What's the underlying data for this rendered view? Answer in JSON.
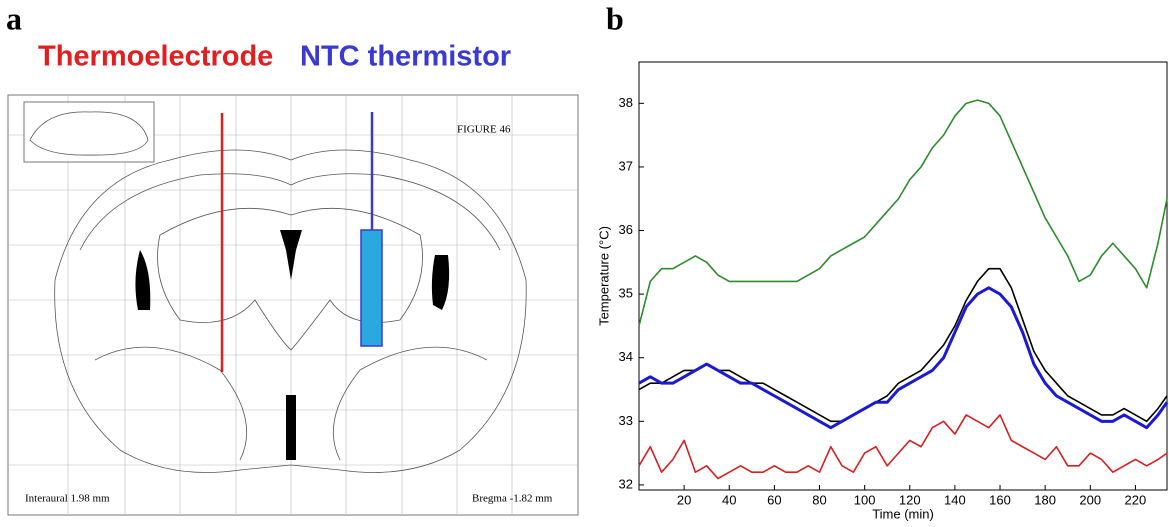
{
  "panel_a": {
    "label": "a",
    "probe_left": "Thermoelectrode",
    "probe_right": "NTC thermistor",
    "figure_label": "FIGURE 46",
    "interaural": "Interaural 1.98 mm",
    "bregma": "Bregma -1.82 mm"
  },
  "chart_data": {
    "type": "line",
    "panel_label": "b",
    "y_label": "Temperature (°C)",
    "x_label": "Time (min)",
    "x": [
      0,
      5,
      10,
      15,
      20,
      25,
      30,
      35,
      40,
      45,
      50,
      55,
      60,
      65,
      70,
      75,
      80,
      85,
      90,
      95,
      100,
      105,
      110,
      115,
      120,
      125,
      130,
      135,
      140,
      145,
      150,
      155,
      160,
      165,
      170,
      175,
      180,
      185,
      190,
      195,
      200,
      205,
      210,
      215,
      220,
      225,
      230,
      234
    ],
    "series": [
      {
        "color": "#2e8b2e",
        "values": [
          34.5,
          35.2,
          35.4,
          35.4,
          35.5,
          35.6,
          35.5,
          35.3,
          35.2,
          35.2,
          35.2,
          35.2,
          35.2,
          35.2,
          35.2,
          35.3,
          35.4,
          35.6,
          35.7,
          35.8,
          35.9,
          36.1,
          36.3,
          36.5,
          36.8,
          37.0,
          37.3,
          37.5,
          37.8,
          38.0,
          38.05,
          38.0,
          37.8,
          37.4,
          37.0,
          36.6,
          36.2,
          35.9,
          35.6,
          35.2,
          35.3,
          35.6,
          35.8,
          35.6,
          35.4,
          35.1,
          35.8,
          36.5
        ]
      },
      {
        "color": "#000000",
        "values": [
          33.5,
          33.6,
          33.6,
          33.7,
          33.8,
          33.8,
          33.9,
          33.8,
          33.8,
          33.7,
          33.6,
          33.6,
          33.5,
          33.4,
          33.3,
          33.2,
          33.1,
          33.0,
          33.0,
          33.1,
          33.2,
          33.3,
          33.4,
          33.6,
          33.7,
          33.8,
          34.0,
          34.2,
          34.5,
          34.9,
          35.2,
          35.4,
          35.4,
          35.1,
          34.6,
          34.1,
          33.8,
          33.6,
          33.4,
          33.3,
          33.2,
          33.1,
          33.1,
          33.2,
          33.1,
          33.0,
          33.2,
          33.4
        ]
      },
      {
        "color": "#1a1ad6",
        "values": [
          33.6,
          33.7,
          33.6,
          33.6,
          33.7,
          33.8,
          33.9,
          33.8,
          33.7,
          33.6,
          33.6,
          33.5,
          33.4,
          33.3,
          33.2,
          33.1,
          33.0,
          32.9,
          33.0,
          33.1,
          33.2,
          33.3,
          33.3,
          33.5,
          33.6,
          33.7,
          33.8,
          34.0,
          34.4,
          34.8,
          35.0,
          35.1,
          35.0,
          34.8,
          34.4,
          33.9,
          33.6,
          33.4,
          33.3,
          33.2,
          33.1,
          33.0,
          33.0,
          33.1,
          33.0,
          32.9,
          33.1,
          33.3
        ]
      },
      {
        "color": "#d42020",
        "values": [
          32.3,
          32.6,
          32.2,
          32.4,
          32.7,
          32.2,
          32.3,
          32.1,
          32.2,
          32.3,
          32.2,
          32.2,
          32.3,
          32.2,
          32.2,
          32.3,
          32.2,
          32.6,
          32.3,
          32.2,
          32.5,
          32.6,
          32.3,
          32.5,
          32.7,
          32.6,
          32.9,
          33.0,
          32.8,
          33.1,
          33.0,
          32.9,
          33.1,
          32.7,
          32.6,
          32.5,
          32.4,
          32.6,
          32.3,
          32.3,
          32.5,
          32.4,
          32.2,
          32.3,
          32.4,
          32.3,
          32.4,
          32.5
        ]
      }
    ],
    "xlim": [
      0,
      234
    ],
    "ylim": [
      31.92,
      38.65
    ],
    "xticks": [
      20,
      40,
      60,
      80,
      100,
      120,
      140,
      160,
      180,
      200,
      220
    ],
    "yticks": [
      32,
      33,
      34,
      35,
      36,
      37,
      38
    ]
  }
}
